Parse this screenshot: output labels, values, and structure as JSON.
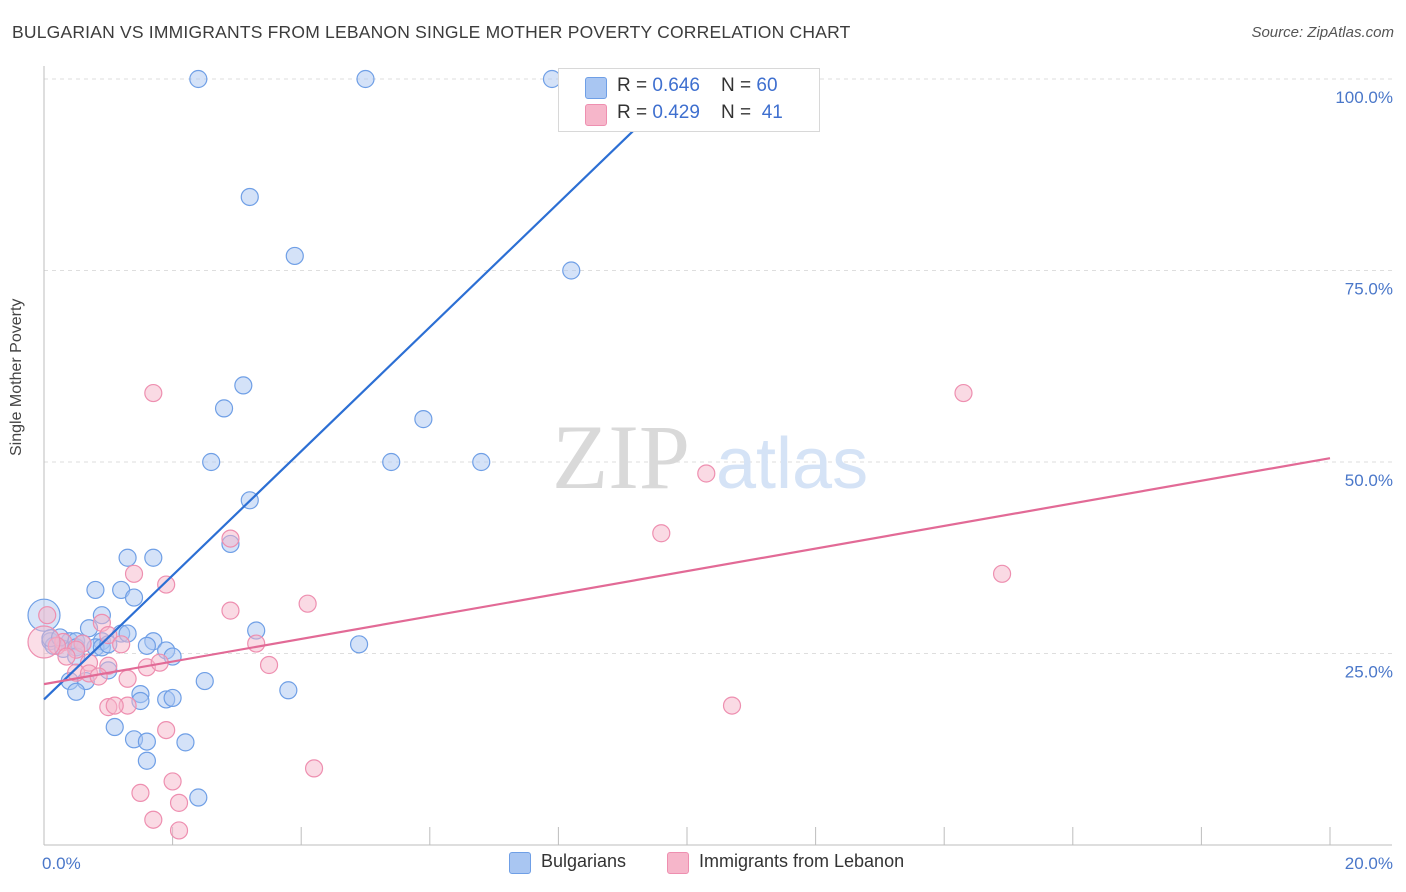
{
  "header": {
    "title": "BULGARIAN VS IMMIGRANTS FROM LEBANON SINGLE MOTHER POVERTY CORRELATION CHART",
    "source": "Source: ZipAtlas.com"
  },
  "watermark": {
    "zip": "ZIP",
    "atlas": "atlas"
  },
  "legend": {
    "rows": [
      {
        "r_label": "R = ",
        "r_value": "0.646",
        "n_label": "N = ",
        "n_value": "60",
        "color": "#a9c6f2"
      },
      {
        "r_label": "R = ",
        "r_value": "0.429",
        "n_label": "N = ",
        "n_value": "41",
        "color": "#f6b6ca"
      }
    ]
  },
  "bottom_legend": {
    "items": [
      {
        "label": "Bulgarians",
        "color": "#a9c6f2"
      },
      {
        "label": "Immigrants from Lebanon",
        "color": "#f6b6ca"
      }
    ]
  },
  "chart_data": {
    "type": "scatter",
    "title": "BULGARIAN VS IMMIGRANTS FROM LEBANON SINGLE MOTHER POVERTY CORRELATION CHART",
    "xlabel": "",
    "ylabel": "Single Mother Poverty",
    "xlim": [
      0,
      20
    ],
    "ylim": [
      0,
      100
    ],
    "x_tick_labels": [
      "0.0%",
      "20.0%"
    ],
    "y_ticks": [
      25,
      50,
      75,
      100
    ],
    "y_tick_labels": [
      "25.0%",
      "50.0%",
      "75.0%",
      "100.0%"
    ],
    "grid": true,
    "series": [
      {
        "name": "Bulgarians",
        "color": "#6f9fe6",
        "fill": "#a9c6f2",
        "line_color": "#2c6fd4",
        "trend": {
          "x0": 0,
          "y0": 19.0,
          "x1": 10.0,
          "y1": 100.0
        },
        "points": [
          [
            2.4,
            100
          ],
          [
            5.0,
            100
          ],
          [
            7.9,
            100
          ],
          [
            3.2,
            84.6
          ],
          [
            3.9,
            76.9
          ],
          [
            8.2,
            75.0
          ],
          [
            3.1,
            60.0
          ],
          [
            2.8,
            57.0
          ],
          [
            5.9,
            55.6
          ],
          [
            2.6,
            50.0
          ],
          [
            5.4,
            50.0
          ],
          [
            6.8,
            50.0
          ],
          [
            3.2,
            45.0
          ],
          [
            2.9,
            39.3
          ],
          [
            1.3,
            37.5
          ],
          [
            1.7,
            37.5
          ],
          [
            0.8,
            33.3
          ],
          [
            1.2,
            33.3
          ],
          [
            1.4,
            32.3
          ],
          [
            0.9,
            30.0
          ],
          [
            3.3,
            28.0
          ],
          [
            1.2,
            27.6
          ],
          [
            1.3,
            27.6
          ],
          [
            0.7,
            28.3
          ],
          [
            0.4,
            26.6
          ],
          [
            0.5,
            26.6
          ],
          [
            0.9,
            26.6
          ],
          [
            0.1,
            26.6
          ],
          [
            0.15,
            26.0
          ],
          [
            0.3,
            25.6
          ],
          [
            0.5,
            25.8
          ],
          [
            0.8,
            25.8
          ],
          [
            0.9,
            25.8
          ],
          [
            1.0,
            26.2
          ],
          [
            1.7,
            26.6
          ],
          [
            1.6,
            26.0
          ],
          [
            1.9,
            25.4
          ],
          [
            2.0,
            24.6
          ],
          [
            0.5,
            24.6
          ],
          [
            1.0,
            22.8
          ],
          [
            4.9,
            26.2
          ],
          [
            0.4,
            21.4
          ],
          [
            0.65,
            21.4
          ],
          [
            2.5,
            21.4
          ],
          [
            0.5,
            20.0
          ],
          [
            1.5,
            19.7
          ],
          [
            1.5,
            18.8
          ],
          [
            1.9,
            19.0
          ],
          [
            2.0,
            19.2
          ],
          [
            3.8,
            20.2
          ],
          [
            1.1,
            15.4
          ],
          [
            1.4,
            13.8
          ],
          [
            1.6,
            13.5
          ],
          [
            2.2,
            13.4
          ],
          [
            1.6,
            11.0
          ],
          [
            2.4,
            6.2
          ],
          [
            0.0,
            30.0
          ],
          [
            0.1,
            27.0
          ],
          [
            0.25,
            27.1
          ],
          [
            0.6,
            26.3
          ]
        ]
      },
      {
        "name": "Immigrants from Lebanon",
        "color": "#ee8fb0",
        "fill": "#f6b6ca",
        "line_color": "#e26a96",
        "trend": {
          "x0": 0,
          "y0": 21.0,
          "x1": 20.0,
          "y1": 50.5
        },
        "points": [
          [
            1.7,
            59.0
          ],
          [
            14.3,
            59.0
          ],
          [
            10.3,
            48.5
          ],
          [
            9.6,
            40.7
          ],
          [
            2.9,
            40.0
          ],
          [
            14.9,
            35.4
          ],
          [
            1.4,
            35.4
          ],
          [
            1.9,
            34.0
          ],
          [
            2.9,
            30.6
          ],
          [
            4.1,
            31.5
          ],
          [
            0.9,
            29.0
          ],
          [
            1.0,
            27.4
          ],
          [
            0.3,
            26.5
          ],
          [
            0.6,
            26.3
          ],
          [
            3.3,
            26.3
          ],
          [
            1.2,
            26.2
          ],
          [
            0.2,
            26.0
          ],
          [
            0.5,
            25.5
          ],
          [
            0.7,
            23.8
          ],
          [
            1.0,
            23.4
          ],
          [
            3.5,
            23.5
          ],
          [
            1.6,
            23.2
          ],
          [
            1.8,
            23.8
          ],
          [
            0.5,
            22.5
          ],
          [
            0.7,
            22.4
          ],
          [
            1.3,
            21.7
          ],
          [
            1.3,
            18.2
          ],
          [
            1.0,
            18.0
          ],
          [
            1.1,
            18.2
          ],
          [
            10.7,
            18.2
          ],
          [
            1.9,
            15.0
          ],
          [
            4.2,
            10.0
          ],
          [
            2.0,
            8.3
          ],
          [
            1.5,
            6.8
          ],
          [
            2.1,
            5.5
          ],
          [
            1.7,
            3.3
          ],
          [
            2.1,
            1.9
          ],
          [
            0.0,
            26.5
          ],
          [
            0.05,
            30.0
          ],
          [
            0.35,
            24.6
          ],
          [
            0.85,
            22.0
          ]
        ]
      }
    ]
  }
}
